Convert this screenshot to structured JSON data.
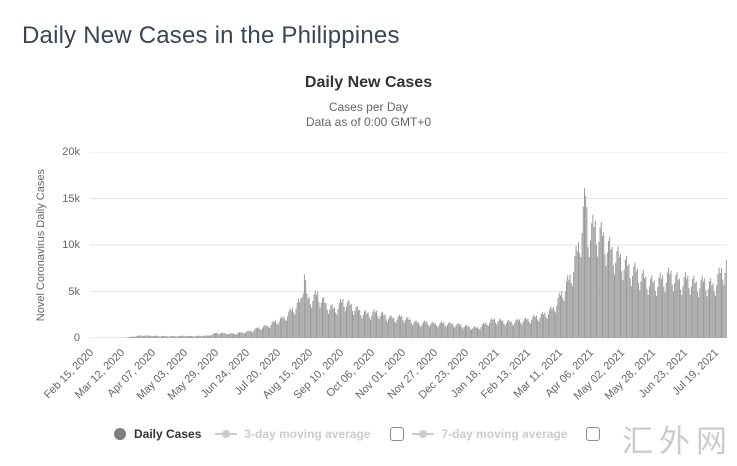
{
  "page": {
    "heading": "Daily New Cases in the Philippines"
  },
  "chart": {
    "title": "Daily New Cases",
    "subtitle1": "Cases per Day",
    "subtitle2": "Data as of 0:00 GMT+0",
    "y_axis_title": "Novel Coronavirus Daily Cases"
  },
  "legend": {
    "daily_cases_label": "Daily Cases",
    "avg3_label": "3-day moving average",
    "avg7_label": "7-day moving average"
  },
  "watermark": "汇外网",
  "colors": {
    "heading": "#3a4556",
    "bar": "#9a9a9a",
    "grid": "#e6e6e6",
    "axis_line": "#d6d6d6",
    "axis_text": "#666666",
    "legend_active": "#333333",
    "legend_disabled": "#cccccc",
    "daily_cases_marker": "#7f7f7f"
  },
  "chart_data": {
    "type": "bar",
    "title": "Daily New Cases",
    "subtitle": [
      "Cases per Day",
      "Data as of 0:00 GMT+0"
    ],
    "series_name": "Daily Cases",
    "xlabel": "",
    "ylabel": "Novel Coronavirus Daily Cases",
    "ylim": [
      0,
      20000
    ],
    "y_ticks": [
      "20k",
      "15k",
      "10k",
      "5k",
      "0"
    ],
    "grid": true,
    "legend_position": "bottom",
    "start_date": "Feb 15, 2020",
    "days": 530,
    "tick_interval_days": 26,
    "x_ticks": [
      "Feb 15, 2020",
      "Mar 12, 2020",
      "Apr 07, 2020",
      "May 03, 2020",
      "May 29, 2020",
      "Jun 24, 2020",
      "Jul 20, 2020",
      "Aug 15, 2020",
      "Sep 10, 2020",
      "Oct 06, 2020",
      "Nov 01, 2020",
      "Nov 27, 2020",
      "Dec 23, 2020",
      "Jan 18, 2021",
      "Feb 13, 2021",
      "Mar 11, 2021",
      "Apr 06, 2021",
      "May 02, 2021",
      "May 28, 2021",
      "Jun 23, 2021",
      "Jul 19, 2021"
    ],
    "anchors": [
      [
        0,
        2
      ],
      [
        21,
        3
      ],
      [
        28,
        15
      ],
      [
        35,
        150
      ],
      [
        42,
        270
      ],
      [
        49,
        250
      ],
      [
        56,
        220
      ],
      [
        63,
        200
      ],
      [
        70,
        190
      ],
      [
        77,
        240
      ],
      [
        84,
        210
      ],
      [
        91,
        230
      ],
      [
        98,
        260
      ],
      [
        105,
        550
      ],
      [
        112,
        500
      ],
      [
        119,
        460
      ],
      [
        126,
        600
      ],
      [
        133,
        750
      ],
      [
        140,
        1100
      ],
      [
        147,
        1300
      ],
      [
        154,
        1800
      ],
      [
        161,
        2200
      ],
      [
        168,
        3100
      ],
      [
        175,
        4000
      ],
      [
        178,
        7600
      ],
      [
        180,
        4300
      ],
      [
        182,
        4200
      ],
      [
        189,
        4700
      ],
      [
        196,
        3600
      ],
      [
        203,
        3100
      ],
      [
        210,
        4000
      ],
      [
        217,
        3500
      ],
      [
        224,
        2900
      ],
      [
        231,
        2600
      ],
      [
        238,
        2800
      ],
      [
        245,
        2400
      ],
      [
        252,
        2100
      ],
      [
        259,
        2300
      ],
      [
        266,
        1900
      ],
      [
        273,
        1600
      ],
      [
        280,
        1700
      ],
      [
        287,
        1500
      ],
      [
        294,
        1600
      ],
      [
        301,
        1500
      ],
      [
        308,
        1400
      ],
      [
        315,
        1200
      ],
      [
        322,
        1100
      ],
      [
        329,
        1600
      ],
      [
        336,
        2000
      ],
      [
        343,
        1800
      ],
      [
        350,
        1700
      ],
      [
        357,
        1900
      ],
      [
        364,
        2000
      ],
      [
        371,
        2300
      ],
      [
        378,
        2600
      ],
      [
        385,
        3200
      ],
      [
        392,
        4800
      ],
      [
        399,
        6500
      ],
      [
        406,
        9800
      ],
      [
        412,
        15300
      ],
      [
        414,
        11500
      ],
      [
        420,
        12000
      ],
      [
        427,
        10800
      ],
      [
        434,
        9300
      ],
      [
        441,
        8600
      ],
      [
        448,
        7600
      ],
      [
        455,
        7100
      ],
      [
        462,
        6300
      ],
      [
        469,
        5900
      ],
      [
        476,
        6400
      ],
      [
        483,
        6900
      ],
      [
        490,
        6100
      ],
      [
        497,
        6400
      ],
      [
        504,
        5800
      ],
      [
        511,
        6100
      ],
      [
        518,
        5600
      ],
      [
        524,
        7000
      ],
      [
        529,
        8000
      ]
    ],
    "weekly_pattern": [
      1.05,
      0.85,
      0.75,
      0.9,
      1.05,
      1.12,
      1.0
    ],
    "peak_value": 15300,
    "peak_date": "Apr 02, 2021"
  }
}
